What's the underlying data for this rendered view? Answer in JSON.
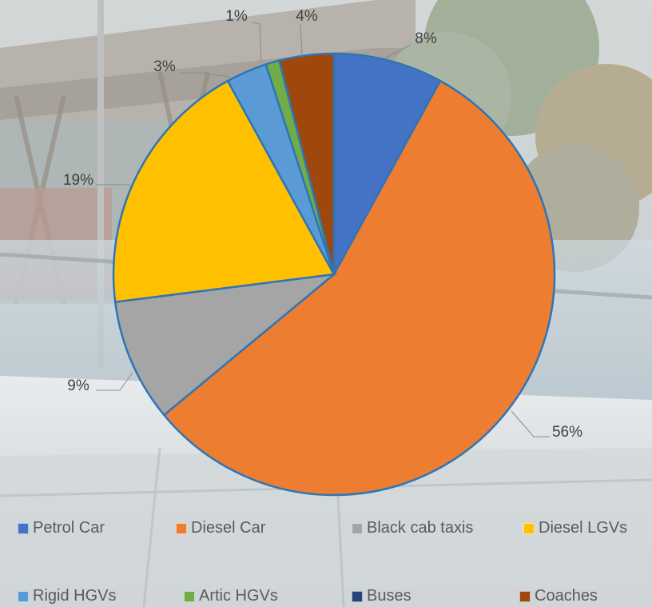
{
  "colors": {
    "petrol_car": "#4472C4",
    "diesel_car": "#ED7D31",
    "black_cab_taxis": "#A5A5A5",
    "diesel_lgvs": "#FFC000",
    "rigid_hgvs": "#5B9BD5",
    "artic_hgvs": "#70AD47",
    "buses": "#264478",
    "coaches": "#9E480E",
    "slice_border": "#2E75B6"
  },
  "chart_data": {
    "type": "pie",
    "start_angle_deg": 0,
    "direction": "clockwise",
    "slices": [
      {
        "name": "Petrol Car",
        "value": 8,
        "label": "8%"
      },
      {
        "name": "Diesel Car",
        "value": 56,
        "label": "56%"
      },
      {
        "name": "Black cab taxis",
        "value": 9,
        "label": "9%"
      },
      {
        "name": "Diesel LGVs",
        "value": 19,
        "label": "19%"
      },
      {
        "name": "Rigid HGVs",
        "value": 3,
        "label": "3%"
      },
      {
        "name": "Artic HGVs",
        "value": 1,
        "label": "1%"
      },
      {
        "name": "Buses",
        "value": 0,
        "label": ""
      },
      {
        "name": "Coaches",
        "value": 4,
        "label": "4%"
      }
    ],
    "legend": {
      "placement": "bottom",
      "entries": [
        "Petrol Car",
        "Diesel Car",
        "Black cab taxis",
        "Diesel LGVs",
        "Rigid HGVs",
        "Artic HGVs",
        "Buses",
        "Coaches"
      ]
    }
  }
}
